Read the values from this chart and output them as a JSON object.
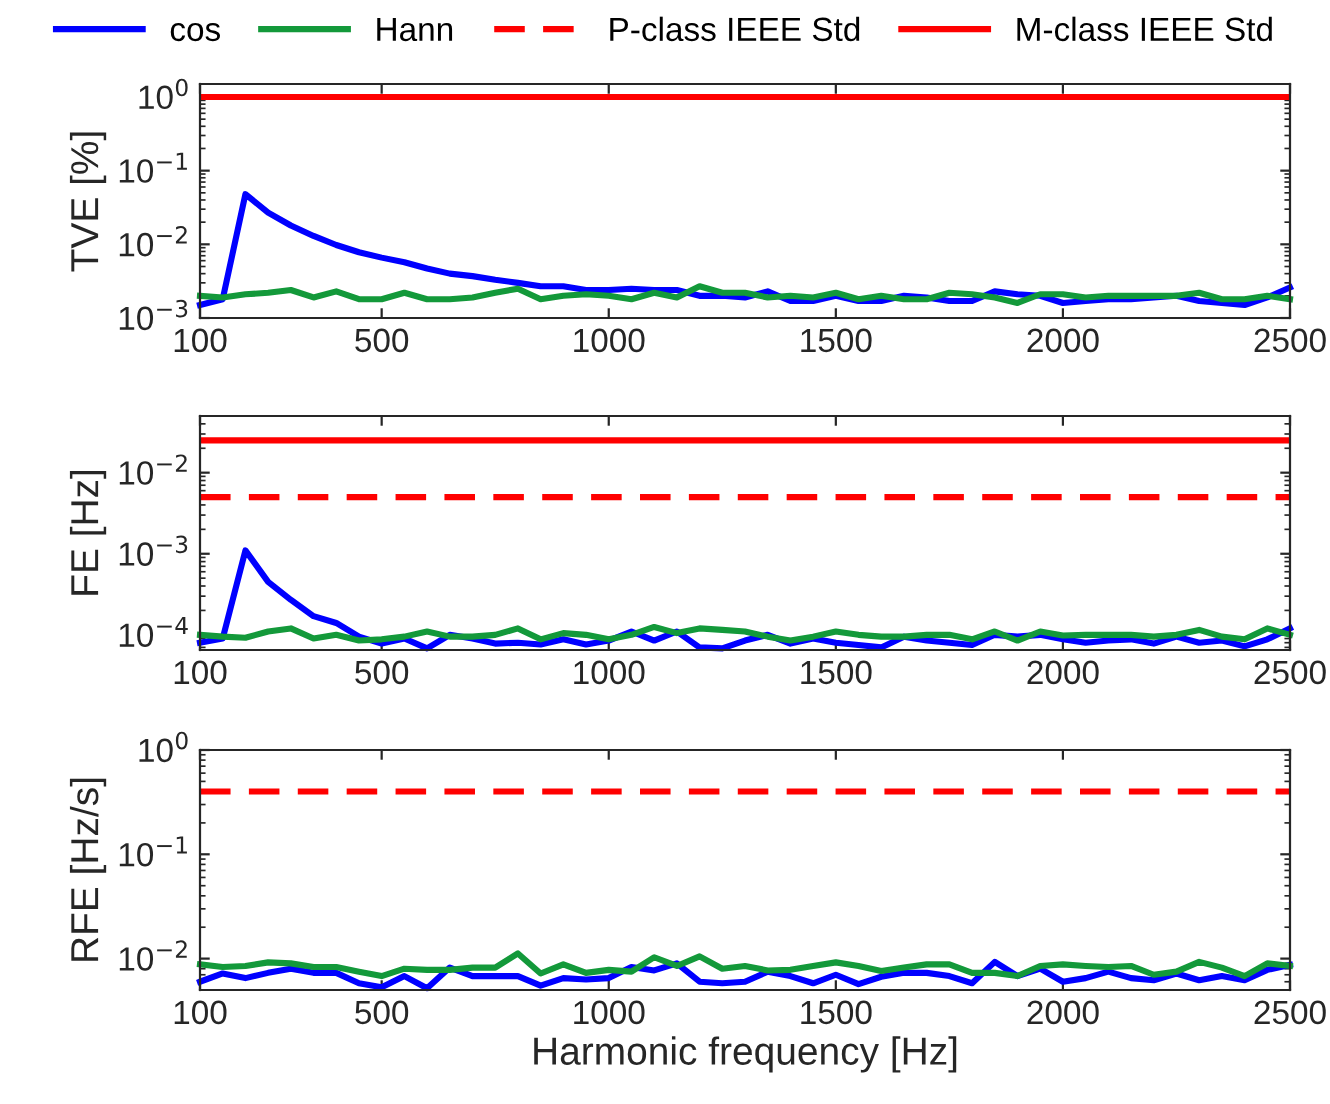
{
  "chart_data": [
    {
      "type": "line",
      "ylabel": "TVE [%]",
      "log": "y",
      "legend": "top",
      "grid": false,
      "line_style": "solid",
      "marker": "none",
      "x": [
        100,
        150,
        200,
        250,
        300,
        350,
        400,
        450,
        500,
        550,
        600,
        650,
        700,
        750,
        800,
        850,
        900,
        950,
        1000,
        1050,
        1100,
        1150,
        1200,
        1250,
        1300,
        1350,
        1400,
        1450,
        1500,
        1550,
        1600,
        1650,
        1700,
        1750,
        1800,
        1850,
        1900,
        1950,
        2000,
        2050,
        2100,
        2150,
        2200,
        2250,
        2300,
        2350,
        2400,
        2450,
        2500
      ],
      "xlim": [
        100,
        2500
      ],
      "xticks": [
        100,
        500,
        1000,
        1500,
        2000,
        2500
      ],
      "ylim": [
        0.001,
        1.5
      ],
      "yticks": [
        {
          "value": 0.001,
          "label": "10$^{−3}$"
        },
        {
          "value": 0.01,
          "label": "10$^{−2}$"
        },
        {
          "value": 0.1,
          "label": "10$^{−1}$"
        },
        {
          "value": 1,
          "label": "10$^{0}$"
        }
      ],
      "series": [
        {
          "name": "cos",
          "color": "#0000ff",
          "values": [
            0.0015,
            0.0018,
            0.048,
            0.027,
            0.018,
            0.013,
            0.0098,
            0.0078,
            0.0066,
            0.0057,
            0.0047,
            0.004,
            0.0037,
            0.0033,
            0.003,
            0.0027,
            0.0027,
            0.0024,
            0.0024,
            0.0025,
            0.0024,
            0.0024,
            0.002,
            0.002,
            0.0019,
            0.0023,
            0.0017,
            0.0017,
            0.002,
            0.0017,
            0.0017,
            0.002,
            0.0019,
            0.0017,
            0.0017,
            0.0023,
            0.0021,
            0.002,
            0.0016,
            0.0017,
            0.0018,
            0.0018,
            0.0019,
            0.002,
            0.0017,
            0.0016,
            0.0015,
            0.0019,
            0.0026
          ]
        },
        {
          "name": "Hann",
          "color": "#13993a",
          "values": [
            0.002,
            0.0019,
            0.0021,
            0.0022,
            0.0024,
            0.0019,
            0.0023,
            0.0018,
            0.0018,
            0.0022,
            0.0018,
            0.0018,
            0.0019,
            0.0022,
            0.0025,
            0.0018,
            0.002,
            0.0021,
            0.002,
            0.0018,
            0.0022,
            0.0019,
            0.0027,
            0.0022,
            0.0022,
            0.0019,
            0.002,
            0.0019,
            0.0022,
            0.0018,
            0.002,
            0.0018,
            0.0018,
            0.0022,
            0.0021,
            0.0019,
            0.0016,
            0.0021,
            0.0021,
            0.0019,
            0.002,
            0.002,
            0.002,
            0.002,
            0.0022,
            0.0018,
            0.0018,
            0.002,
            0.0018
          ]
        }
      ],
      "ref_lines": [
        {
          "axis": "y",
          "value": 1,
          "color": "#ff0000",
          "line_style": "solid"
        }
      ]
    },
    {
      "type": "line",
      "ylabel": "FE [Hz]",
      "log": "y",
      "legend": "top",
      "grid": false,
      "line_style": "solid",
      "marker": "none",
      "x": [
        100,
        150,
        200,
        250,
        300,
        350,
        400,
        450,
        500,
        550,
        600,
        650,
        700,
        750,
        800,
        850,
        900,
        950,
        1000,
        1050,
        1100,
        1150,
        1200,
        1250,
        1300,
        1350,
        1400,
        1450,
        1500,
        1550,
        1600,
        1650,
        1700,
        1750,
        1800,
        1850,
        1900,
        1950,
        2000,
        2050,
        2100,
        2150,
        2200,
        2250,
        2300,
        2350,
        2400,
        2450,
        2500
      ],
      "xlim": [
        100,
        2500
      ],
      "xticks": [
        100,
        500,
        1000,
        1500,
        2000,
        2500
      ],
      "ylim": [
        6.5e-05,
        0.05
      ],
      "yticks": [
        {
          "value": 0.0001,
          "label": "10$^{−4}$"
        },
        {
          "value": 0.001,
          "label": "10$^{−3}$"
        },
        {
          "value": 0.01,
          "label": "10$^{−2}$"
        }
      ],
      "series": [
        {
          "color": "#0000ff",
          "values": [
            8e-05,
            9e-05,
            0.0011,
            0.00045,
            0.00027,
            0.00017,
            0.00014,
            9.5e-05,
            7.8e-05,
            9e-05,
            6.8e-05,
            0.0001,
            9e-05,
            7.8e-05,
            8e-05,
            7.6e-05,
            8.8e-05,
            7.6e-05,
            8.5e-05,
            0.00011,
            8.5e-05,
            0.00011,
            7e-05,
            6.8e-05,
            8.5e-05,
            0.0001,
            7.8e-05,
            9e-05,
            8e-05,
            7.5e-05,
            7e-05,
            9.5e-05,
            8.5e-05,
            8e-05,
            7.5e-05,
            0.0001,
            9.5e-05,
            0.0001,
            8.8e-05,
            8e-05,
            8.5e-05,
            8.8e-05,
            7.8e-05,
            9.5e-05,
            8e-05,
            8.5e-05,
            7.2e-05,
            8.8e-05,
            0.00012
          ]
        },
        {
          "color": "#13993a",
          "values": [
            0.0001,
            9.5e-05,
            9.2e-05,
            0.00011,
            0.00012,
            9e-05,
            0.0001,
            8.5e-05,
            8.8e-05,
            9.5e-05,
            0.00011,
            9.5e-05,
            9.5e-05,
            0.0001,
            0.00012,
            8.8e-05,
            0.000105,
            0.0001,
            8.8e-05,
            0.0001,
            0.000125,
            0.000105,
            0.00012,
            0.000115,
            0.00011,
            9.5e-05,
            8.5e-05,
            9.5e-05,
            0.00011,
            0.0001,
            9.5e-05,
            9.5e-05,
            0.0001,
            0.0001,
            8.8e-05,
            0.00011,
            8.5e-05,
            0.00011,
            9.8e-05,
            0.0001,
            0.0001,
            0.0001,
            9.5e-05,
            0.0001,
            0.000115,
            9.5e-05,
            8.8e-05,
            0.00012,
            0.0001
          ]
        }
      ],
      "ref_lines": [
        {
          "axis": "y",
          "value": 0.005,
          "label": "P-class IEEE Std",
          "color": "#ff0000",
          "line_style": "dashed"
        },
        {
          "axis": "y",
          "value": 0.025,
          "label": "M-class IEEE Std",
          "color": "#ff0000",
          "line_style": "solid"
        }
      ]
    },
    {
      "type": "line",
      "ylabel": "RFE [Hz/s]",
      "xlabel": "Harmonic frequency [Hz]",
      "log": "y",
      "grid": false,
      "line_style": "solid",
      "marker": "none",
      "x": [
        100,
        150,
        200,
        250,
        300,
        350,
        400,
        450,
        500,
        550,
        600,
        650,
        700,
        750,
        800,
        850,
        900,
        950,
        1000,
        1050,
        1100,
        1150,
        1200,
        1250,
        1300,
        1350,
        1400,
        1450,
        1500,
        1550,
        1600,
        1650,
        1700,
        1750,
        1800,
        1850,
        1900,
        1950,
        2000,
        2050,
        2100,
        2150,
        2200,
        2250,
        2300,
        2350,
        2400,
        2450,
        2500
      ],
      "xlim": [
        100,
        2500
      ],
      "xticks": [
        100,
        500,
        1000,
        1500,
        2000,
        2500
      ],
      "ylim": [
        0.005,
        1
      ],
      "yticks": [
        {
          "value": 0.01,
          "label": "10$^{−2}$"
        },
        {
          "value": 0.1,
          "label": "10$^{−1}$"
        },
        {
          "value": 1,
          "label": "10$^{0}$"
        }
      ],
      "series": [
        {
          "color": "#0000ff",
          "values": [
            0.006,
            0.0072,
            0.0065,
            0.0073,
            0.008,
            0.0073,
            0.0073,
            0.0058,
            0.0053,
            0.0068,
            0.0052,
            0.0082,
            0.0068,
            0.0068,
            0.0068,
            0.0055,
            0.0065,
            0.0063,
            0.0065,
            0.0083,
            0.0077,
            0.009,
            0.006,
            0.0058,
            0.006,
            0.0075,
            0.0068,
            0.0058,
            0.007,
            0.0057,
            0.0067,
            0.0073,
            0.0073,
            0.0068,
            0.0058,
            0.0093,
            0.0068,
            0.008,
            0.006,
            0.0065,
            0.0075,
            0.0065,
            0.0062,
            0.0072,
            0.0062,
            0.0068,
            0.0062,
            0.0078,
            0.0087
          ]
        },
        {
          "color": "#13993a",
          "values": [
            0.0088,
            0.0083,
            0.0085,
            0.0092,
            0.009,
            0.0083,
            0.0083,
            0.0075,
            0.0068,
            0.008,
            0.0078,
            0.0078,
            0.0082,
            0.0082,
            0.0112,
            0.0072,
            0.0088,
            0.0073,
            0.0078,
            0.0075,
            0.0103,
            0.0085,
            0.0105,
            0.008,
            0.0085,
            0.0077,
            0.0078,
            0.0085,
            0.0092,
            0.0085,
            0.0076,
            0.0082,
            0.0088,
            0.0088,
            0.0073,
            0.0073,
            0.0068,
            0.0085,
            0.0088,
            0.0085,
            0.0083,
            0.0085,
            0.007,
            0.0075,
            0.0093,
            0.0082,
            0.0068,
            0.009,
            0.0085
          ]
        }
      ],
      "ref_lines": [
        {
          "axis": "y",
          "value": 0.4,
          "color": "#ff0000",
          "line_style": "dashed"
        }
      ]
    }
  ]
}
